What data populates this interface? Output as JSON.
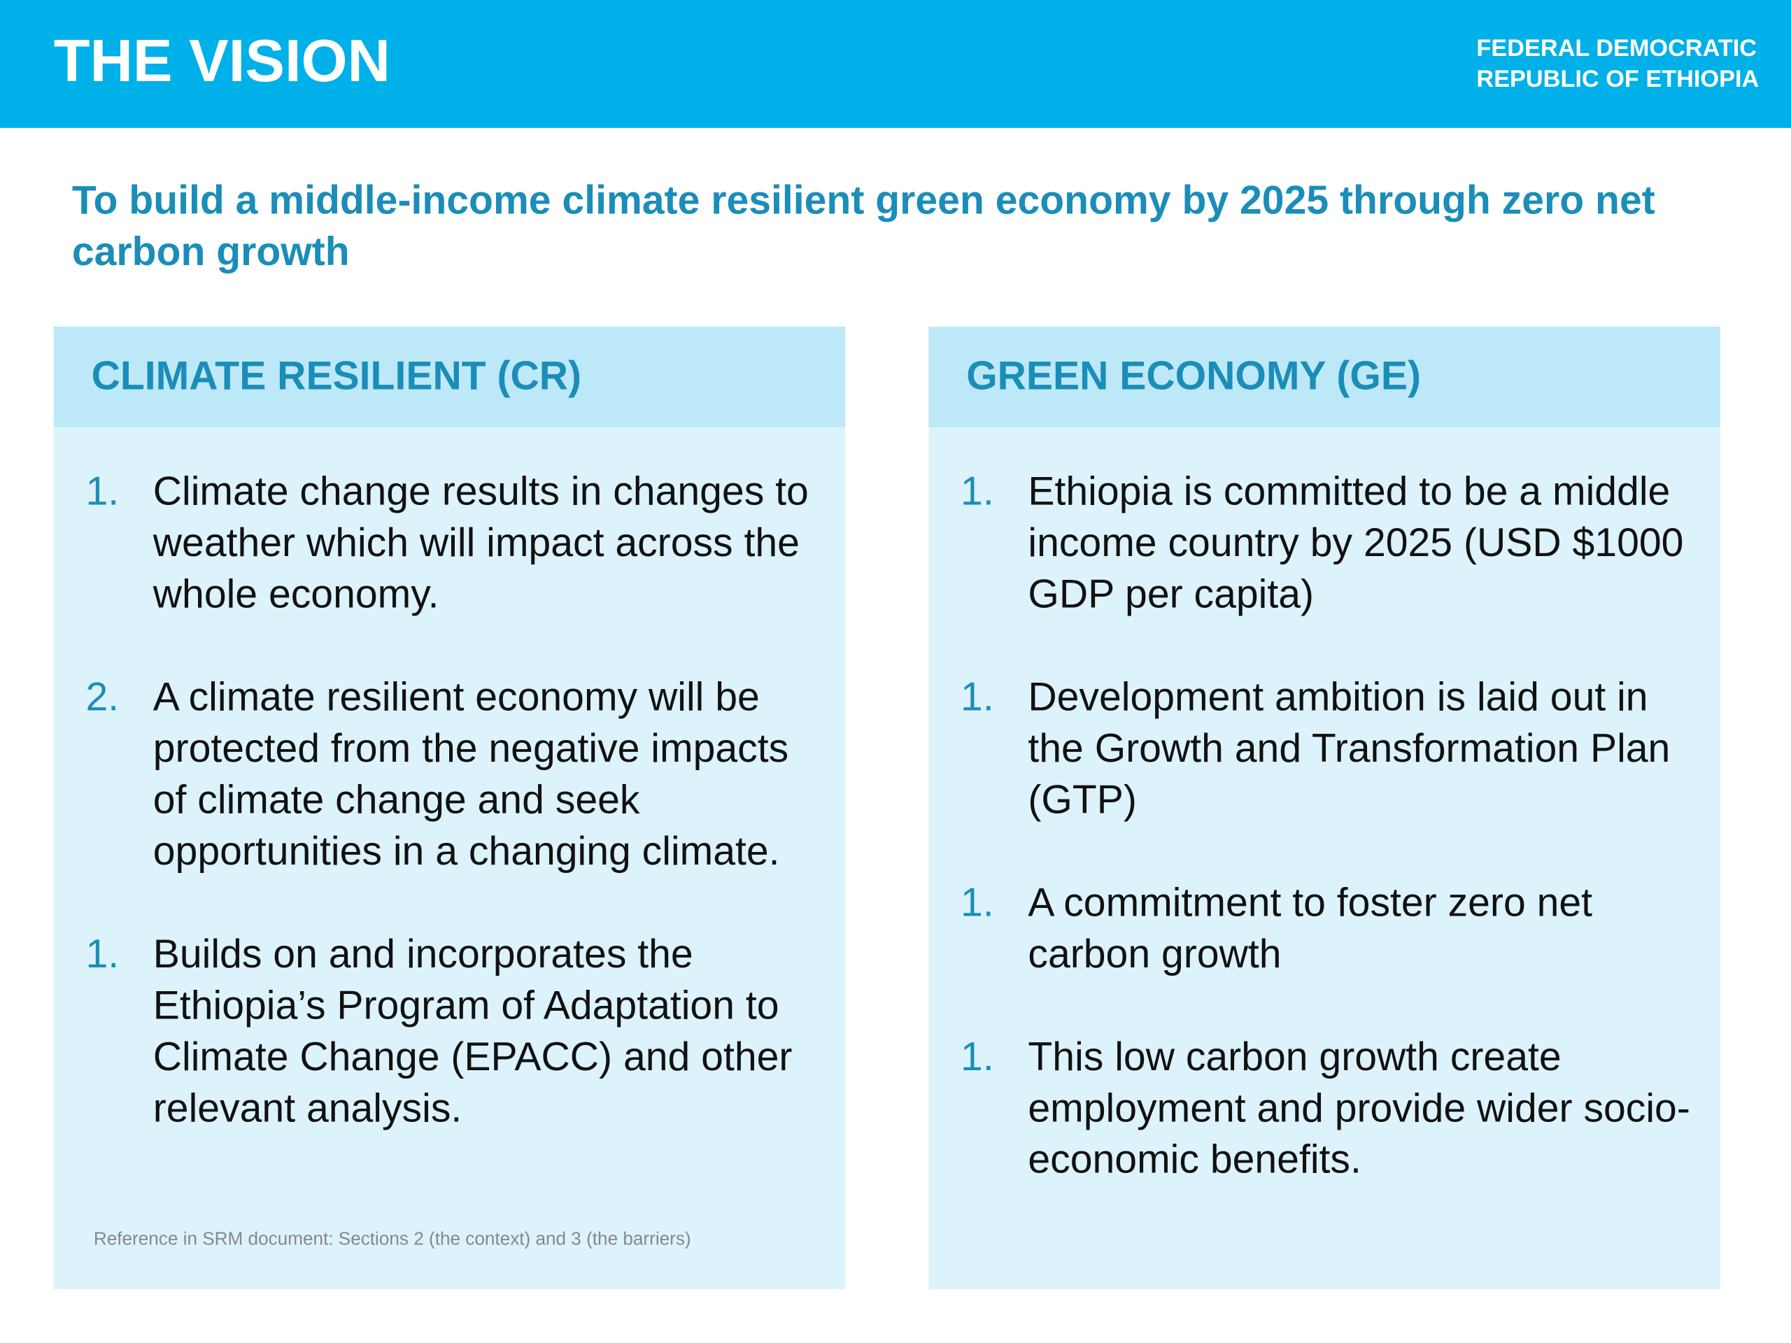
{
  "header": {
    "title": "THE VISION",
    "org": [
      "FEDERAL DEMOCRATIC",
      "REPUBLIC OF ETHIOPIA"
    ]
  },
  "vision": "To build a middle-income climate resilient green economy by 2025 through zero net carbon growth",
  "panels": [
    {
      "heading": "CLIMATE RESILIENT (CR)",
      "items": [
        {
          "number": "1.",
          "text": "Climate change results in changes to weather which will impact across the whole economy."
        },
        {
          "number": "2.",
          "text": "A climate resilient economy will be protected from the negative impacts of climate change and seek opportunities in a changing climate."
        },
        {
          "number": "1.",
          "text": "Builds on and incorporates the Ethiopia’s Program of Adaptation to Climate Change (EPACC) and other relevant analysis."
        }
      ]
    },
    {
      "heading": "GREEN ECONOMY (GE)",
      "items": [
        {
          "number": "1.",
          "text": "Ethiopia is committed to be a middle income country by 2025 (USD $1000 GDP per capita)"
        },
        {
          "number": "1.",
          "text": "Development ambition is laid out in the Growth and Transformation Plan (GTP)"
        },
        {
          "number": "1.",
          "text": "A commitment to foster zero net carbon growth"
        },
        {
          "number": "1.",
          "text": "This low carbon growth create employment and provide wider socio-economic benefits."
        }
      ]
    }
  ],
  "footnote": "Reference in SRM document: Sections 2 (the context) and 3 (the barriers)"
}
